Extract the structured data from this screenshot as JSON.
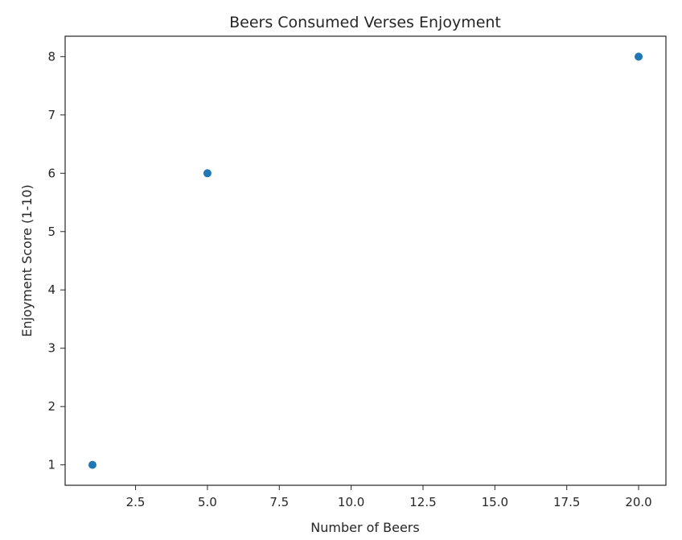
{
  "chart_data": {
    "type": "scatter",
    "title": "Beers Consumed Verses Enjoyment",
    "xlabel": "Number of Beers",
    "ylabel": "Enjoyment Score (1-10)",
    "series": [
      {
        "x": [
          1,
          5,
          20
        ],
        "y": [
          1,
          6,
          8
        ],
        "color": "#1f77b4"
      }
    ],
    "xlim": [
      0.05,
      20.95
    ],
    "ylim": [
      0.65,
      8.35
    ],
    "xticks": [
      2.5,
      5.0,
      7.5,
      10.0,
      12.5,
      15.0,
      17.5,
      20.0
    ],
    "xtick_labels": [
      "2.5",
      "5.0",
      "7.5",
      "10.0",
      "12.5",
      "15.0",
      "17.5",
      "20.0"
    ],
    "yticks": [
      1,
      2,
      3,
      4,
      5,
      6,
      7,
      8
    ],
    "ytick_labels": [
      "1",
      "2",
      "3",
      "4",
      "5",
      "6",
      "7",
      "8"
    ],
    "grid": false,
    "legend": false
  }
}
